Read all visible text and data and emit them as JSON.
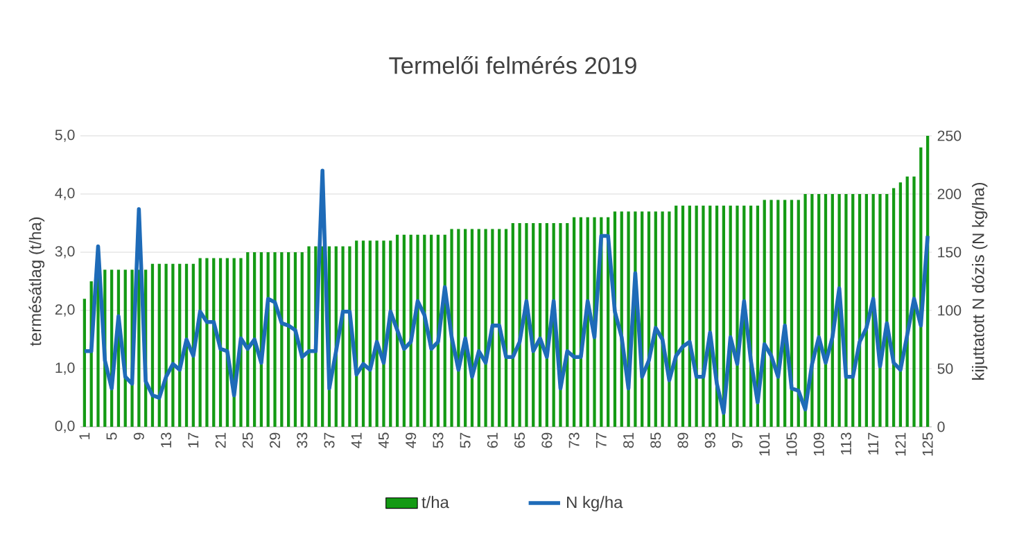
{
  "chart_data": {
    "type": "bar",
    "title": "Termelői felmérés 2019",
    "ylabel": "termésátlag (t/ha)",
    "y2label": "kijuttatott N dózis (N kg/ha)",
    "categories": [
      "1",
      null,
      null,
      null,
      "5",
      null,
      null,
      null,
      "9",
      null,
      null,
      null,
      "13",
      null,
      null,
      null,
      "17",
      null,
      null,
      null,
      "21",
      null,
      null,
      null,
      "25",
      null,
      null,
      null,
      "29",
      null,
      null,
      null,
      "33",
      null,
      null,
      null,
      "37",
      null,
      null,
      null,
      "41",
      null,
      null,
      null,
      "45",
      null,
      null,
      null,
      "49",
      null,
      null,
      null,
      "53",
      null,
      null,
      null,
      "57",
      null,
      null,
      null,
      "61",
      null,
      null,
      null,
      "65",
      null,
      null,
      null,
      "69",
      null,
      null,
      null,
      "73",
      null,
      null,
      null,
      "77",
      null,
      null,
      null,
      "81",
      null,
      null,
      null,
      "85",
      null,
      null,
      null,
      "89",
      null,
      null,
      null,
      "93",
      null,
      null,
      null,
      "97",
      null,
      null,
      null,
      "101",
      null,
      null,
      null,
      "105",
      null,
      null,
      null,
      "109",
      null,
      null,
      null,
      "113",
      null,
      null,
      null,
      "117",
      null,
      null,
      null,
      "121",
      null,
      null,
      null,
      "125"
    ],
    "series": [
      {
        "name": "t/ha",
        "color": "#149a14",
        "values": [
          2.2,
          2.5,
          2.6,
          2.7,
          2.7,
          2.7,
          2.7,
          2.7,
          2.7,
          2.7,
          2.8,
          2.8,
          2.8,
          2.8,
          2.8,
          2.8,
          2.8,
          2.9,
          2.9,
          2.9,
          2.9,
          2.9,
          2.9,
          2.9,
          3.0,
          3.0,
          3.0,
          3.0,
          3.0,
          3.0,
          3.0,
          3.0,
          3.0,
          3.1,
          3.1,
          3.1,
          3.1,
          3.1,
          3.1,
          3.1,
          3.2,
          3.2,
          3.2,
          3.2,
          3.2,
          3.2,
          3.3,
          3.3,
          3.3,
          3.3,
          3.3,
          3.3,
          3.3,
          3.3,
          3.4,
          3.4,
          3.4,
          3.4,
          3.4,
          3.4,
          3.4,
          3.4,
          3.4,
          3.5,
          3.5,
          3.5,
          3.5,
          3.5,
          3.5,
          3.5,
          3.5,
          3.5,
          3.6,
          3.6,
          3.6,
          3.6,
          3.6,
          3.6,
          3.7,
          3.7,
          3.7,
          3.7,
          3.7,
          3.7,
          3.7,
          3.7,
          3.7,
          3.8,
          3.8,
          3.8,
          3.8,
          3.8,
          3.8,
          3.8,
          3.8,
          3.8,
          3.8,
          3.8,
          3.8,
          3.8,
          3.9,
          3.9,
          3.9,
          3.9,
          3.9,
          3.9,
          4.0,
          4.0,
          4.0,
          4.0,
          4.0,
          4.0,
          4.0,
          4.0,
          4.0,
          4.0,
          4.0,
          4.0,
          4.0,
          4.1,
          4.2,
          4.3,
          4.3,
          4.8,
          5.0
        ]
      },
      {
        "name": "N kg/ha",
        "type": "line",
        "axis": "y2",
        "color": "#1e6bb8",
        "values": [
          65,
          65,
          155,
          57,
          33,
          95,
          43,
          37,
          187,
          39,
          27,
          25,
          43,
          54,
          49,
          75,
          61,
          99,
          90,
          90,
          67,
          65,
          27,
          76,
          67,
          75,
          55,
          110,
          107,
          89,
          87,
          83,
          60,
          65,
          65,
          220,
          33,
          65,
          99,
          99,
          45,
          54,
          49,
          73,
          55,
          99,
          83,
          67,
          73,
          108,
          96,
          67,
          73,
          120,
          77,
          49,
          76,
          43,
          65,
          55,
          87,
          87,
          60,
          60,
          73,
          108,
          65,
          76,
          60,
          108,
          33,
          65,
          60,
          60,
          108,
          77,
          164,
          164,
          99,
          77,
          33,
          132,
          43,
          57,
          85,
          75,
          40,
          61,
          69,
          73,
          43,
          43,
          81,
          37,
          12,
          77,
          54,
          108,
          57,
          21,
          71,
          61,
          43,
          87,
          33,
          31,
          15,
          54,
          77,
          55,
          77,
          119,
          43,
          43,
          73,
          85,
          110,
          52,
          89,
          55,
          49,
          79,
          110,
          87,
          164
        ]
      }
    ],
    "ylim": [
      0,
      5
    ],
    "yticks": [
      {
        "value": 0,
        "label": "0,0"
      },
      {
        "value": 1,
        "label": "1,0"
      },
      {
        "value": 2,
        "label": "2,0"
      },
      {
        "value": 3,
        "label": "3,0"
      },
      {
        "value": 4,
        "label": "4,0"
      },
      {
        "value": 5,
        "label": "5,0"
      }
    ],
    "y2lim": [
      0,
      250
    ],
    "y2ticks": [
      0,
      50,
      100,
      150,
      200,
      250
    ],
    "grid": "y",
    "legend": "bottom"
  }
}
